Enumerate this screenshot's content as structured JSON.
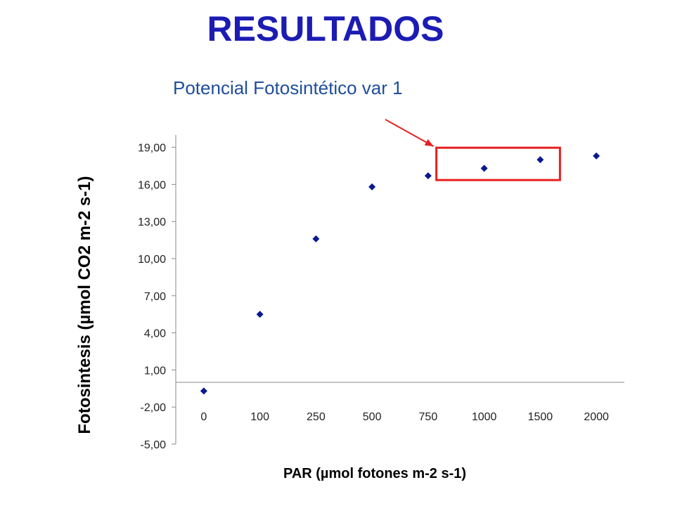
{
  "slide": {
    "title": "RESULTADOS"
  },
  "chart_data": {
    "type": "scatter",
    "title": "Potencial Fotosintético var 1",
    "xlabel": "PAR (µmol  fotones m-2 s-1)",
    "ylabel": "Fotosintesis (µmol  CO2 m-2 s-1)",
    "categories": [
      "0",
      "100",
      "250",
      "500",
      "750",
      "1000",
      "1500",
      "2000"
    ],
    "y_ticks": [
      "19,00",
      "16,00",
      "13,00",
      "10,00",
      "7,00",
      "4,00",
      "1,00",
      "-2,00",
      "-5,00"
    ],
    "ylim": [
      -5,
      20
    ],
    "values": [
      -0.7,
      5.5,
      11.6,
      15.8,
      16.7,
      17.3,
      18.0,
      18.3
    ],
    "grid": false,
    "marker_color": "#0a1a8c",
    "highlight": {
      "color": "#e82020",
      "from_category": 5,
      "to_category": 6
    }
  }
}
